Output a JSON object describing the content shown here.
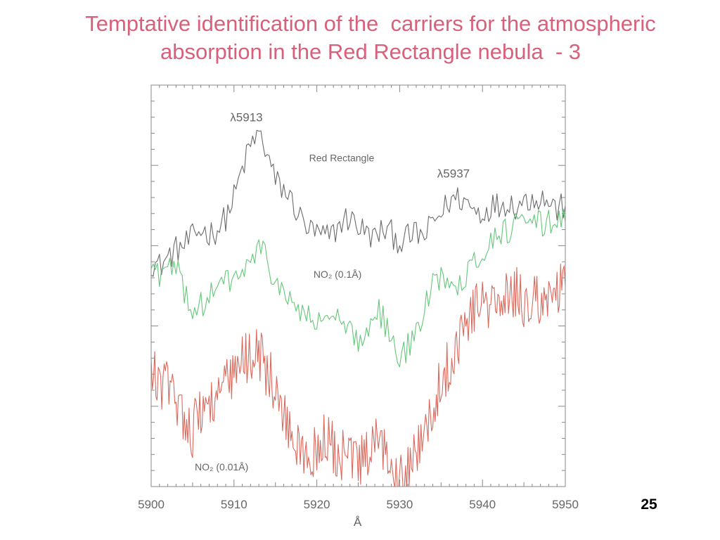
{
  "slide": {
    "title_line1": "Temptative identification of the  carriers for the atmospheric",
    "title_line2": "absorption in the Red Rectangle nebula  - 3",
    "title_color": "#d9607a",
    "page_number": "25"
  },
  "chart_data": {
    "type": "line",
    "title": "",
    "xlabel": "Å",
    "ylabel": "",
    "xlim": [
      5900,
      5950
    ],
    "ylim": [
      0,
      1
    ],
    "x_ticks": [
      5900,
      5910,
      5920,
      5930,
      5940,
      5950
    ],
    "x_tick_labels": [
      "5900",
      "5910",
      "5920",
      "5930",
      "5940",
      "5950"
    ],
    "y_ticks_shown_without_labels": true,
    "grid": false,
    "annotations": [
      {
        "text": "λ5913",
        "x": 5911.5,
        "y": 0.91
      },
      {
        "text": "λ5937",
        "x": 5936.5,
        "y": 0.77
      },
      {
        "text": "Red Rectangle",
        "x": 5923,
        "y": 0.81
      },
      {
        "text": "NO₂ (0.1Å)",
        "x": 5922.5,
        "y": 0.52
      },
      {
        "text": "NO₂ (0.01Å)",
        "x": 5908.5,
        "y": 0.04
      }
    ],
    "series": [
      {
        "name": "Red Rectangle",
        "color": "#6b6b6b",
        "x": [
          5900,
          5901,
          5902,
          5903,
          5904,
          5905,
          5906,
          5907,
          5908,
          5909,
          5910,
          5911,
          5912,
          5913,
          5914,
          5915,
          5916,
          5917,
          5918,
          5919,
          5920,
          5921,
          5922,
          5923,
          5924,
          5925,
          5926,
          5927,
          5928,
          5929,
          5930,
          5931,
          5932,
          5933,
          5934,
          5935,
          5936,
          5937,
          5938,
          5939,
          5940,
          5941,
          5942,
          5943,
          5944,
          5945,
          5946,
          5947,
          5948,
          5949,
          5950
        ],
        "values": [
          0.56,
          0.55,
          0.57,
          0.59,
          0.6,
          0.62,
          0.64,
          0.63,
          0.64,
          0.67,
          0.72,
          0.79,
          0.85,
          0.88,
          0.83,
          0.76,
          0.74,
          0.71,
          0.67,
          0.64,
          0.63,
          0.62,
          0.63,
          0.66,
          0.67,
          0.65,
          0.63,
          0.62,
          0.64,
          0.63,
          0.61,
          0.62,
          0.63,
          0.62,
          0.66,
          0.68,
          0.71,
          0.72,
          0.71,
          0.69,
          0.68,
          0.7,
          0.7,
          0.71,
          0.7,
          0.71,
          0.72,
          0.72,
          0.71,
          0.69,
          0.7
        ]
      },
      {
        "name": "NO₂ (0.1Å)",
        "color": "#66c77a",
        "x": [
          5900,
          5901,
          5902,
          5903,
          5904,
          5905,
          5906,
          5907,
          5908,
          5909,
          5910,
          5911,
          5912,
          5913,
          5914,
          5915,
          5916,
          5917,
          5918,
          5919,
          5920,
          5921,
          5922,
          5923,
          5924,
          5925,
          5926,
          5927,
          5928,
          5929,
          5930,
          5931,
          5932,
          5933,
          5934,
          5935,
          5936,
          5937,
          5938,
          5939,
          5940,
          5941,
          5942,
          5943,
          5944,
          5945,
          5946,
          5947,
          5948,
          5949,
          5950
        ],
        "values": [
          0.55,
          0.53,
          0.54,
          0.54,
          0.49,
          0.44,
          0.45,
          0.47,
          0.49,
          0.51,
          0.52,
          0.53,
          0.56,
          0.59,
          0.57,
          0.51,
          0.47,
          0.46,
          0.44,
          0.42,
          0.4,
          0.43,
          0.42,
          0.4,
          0.38,
          0.36,
          0.39,
          0.45,
          0.42,
          0.36,
          0.31,
          0.35,
          0.38,
          0.44,
          0.5,
          0.53,
          0.52,
          0.51,
          0.53,
          0.56,
          0.58,
          0.61,
          0.63,
          0.64,
          0.65,
          0.65,
          0.66,
          0.65,
          0.66,
          0.67,
          0.66
        ]
      },
      {
        "name": "NO₂ (0.01Å)",
        "color": "#d96a5e",
        "x": [
          5900,
          5901,
          5902,
          5903,
          5904,
          5905,
          5906,
          5907,
          5908,
          5909,
          5910,
          5911,
          5912,
          5913,
          5914,
          5915,
          5916,
          5917,
          5918,
          5919,
          5920,
          5921,
          5922,
          5923,
          5924,
          5925,
          5926,
          5927,
          5928,
          5929,
          5930,
          5931,
          5932,
          5933,
          5934,
          5935,
          5936,
          5937,
          5938,
          5939,
          5940,
          5941,
          5942,
          5943,
          5944,
          5945,
          5946,
          5947,
          5948,
          5949,
          5950
        ],
        "values": [
          0.28,
          0.26,
          0.25,
          0.22,
          0.18,
          0.14,
          0.19,
          0.21,
          0.23,
          0.25,
          0.27,
          0.31,
          0.33,
          0.34,
          0.29,
          0.23,
          0.18,
          0.13,
          0.08,
          0.06,
          0.1,
          0.12,
          0.09,
          0.07,
          0.08,
          0.05,
          0.07,
          0.1,
          0.09,
          0.07,
          0.05,
          0.05,
          0.09,
          0.12,
          0.2,
          0.26,
          0.31,
          0.36,
          0.41,
          0.45,
          0.46,
          0.44,
          0.47,
          0.46,
          0.48,
          0.46,
          0.47,
          0.45,
          0.49,
          0.48,
          0.5
        ]
      }
    ]
  }
}
